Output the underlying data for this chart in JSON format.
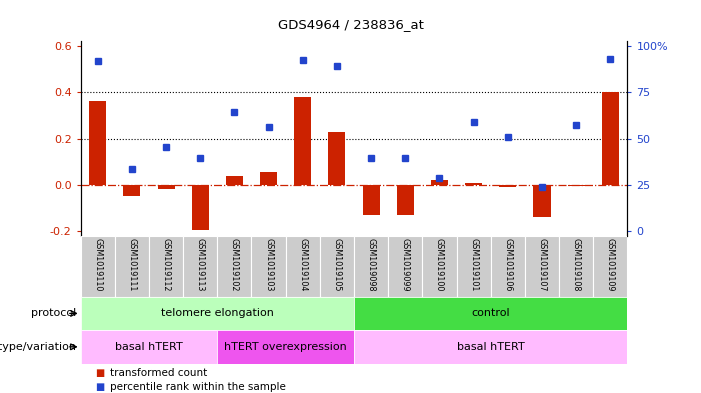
{
  "title": "GDS4964 / 238836_at",
  "samples": [
    "GSM1019110",
    "GSM1019111",
    "GSM1019112",
    "GSM1019113",
    "GSM1019102",
    "GSM1019103",
    "GSM1019104",
    "GSM1019105",
    "GSM1019098",
    "GSM1019099",
    "GSM1019100",
    "GSM1019101",
    "GSM1019106",
    "GSM1019107",
    "GSM1019108",
    "GSM1019109"
  ],
  "bar_values": [
    0.36,
    -0.05,
    -0.02,
    -0.195,
    0.04,
    0.055,
    0.38,
    0.23,
    -0.13,
    -0.13,
    0.02,
    0.01,
    -0.01,
    -0.14,
    -0.005,
    0.4
  ],
  "dot_values": [
    0.535,
    0.07,
    0.165,
    0.115,
    0.315,
    0.25,
    0.54,
    0.515,
    0.115,
    0.115,
    0.03,
    0.27,
    0.205,
    -0.01,
    0.26,
    0.545
  ],
  "ylim": [
    -0.22,
    0.62
  ],
  "yticks_left": [
    -0.2,
    0.0,
    0.2,
    0.4,
    0.6
  ],
  "yticks_right": [
    0,
    25,
    50,
    75,
    100
  ],
  "hlines": [
    0.2,
    0.4
  ],
  "bar_color": "#cc2200",
  "dot_color": "#2244cc",
  "protocol_groups": [
    {
      "label": "telomere elongation",
      "start": 0,
      "end": 8,
      "color": "#bbffbb"
    },
    {
      "label": "control",
      "start": 8,
      "end": 16,
      "color": "#44dd44"
    }
  ],
  "genotype_groups": [
    {
      "label": "basal hTERT",
      "start": 0,
      "end": 4,
      "color": "#ffbbff"
    },
    {
      "label": "hTERT overexpression",
      "start": 4,
      "end": 8,
      "color": "#ee55ee"
    },
    {
      "label": "basal hTERT",
      "start": 8,
      "end": 16,
      "color": "#ffbbff"
    }
  ],
  "legend_items": [
    {
      "label": "transformed count",
      "color": "#cc2200"
    },
    {
      "label": "percentile rank within the sample",
      "color": "#2244cc"
    }
  ],
  "protocol_label": "protocol",
  "genotype_label": "genotype/variation",
  "background_color": "#ffffff",
  "label_bg_color": "#cccccc",
  "label_edge_color": "#ffffff"
}
